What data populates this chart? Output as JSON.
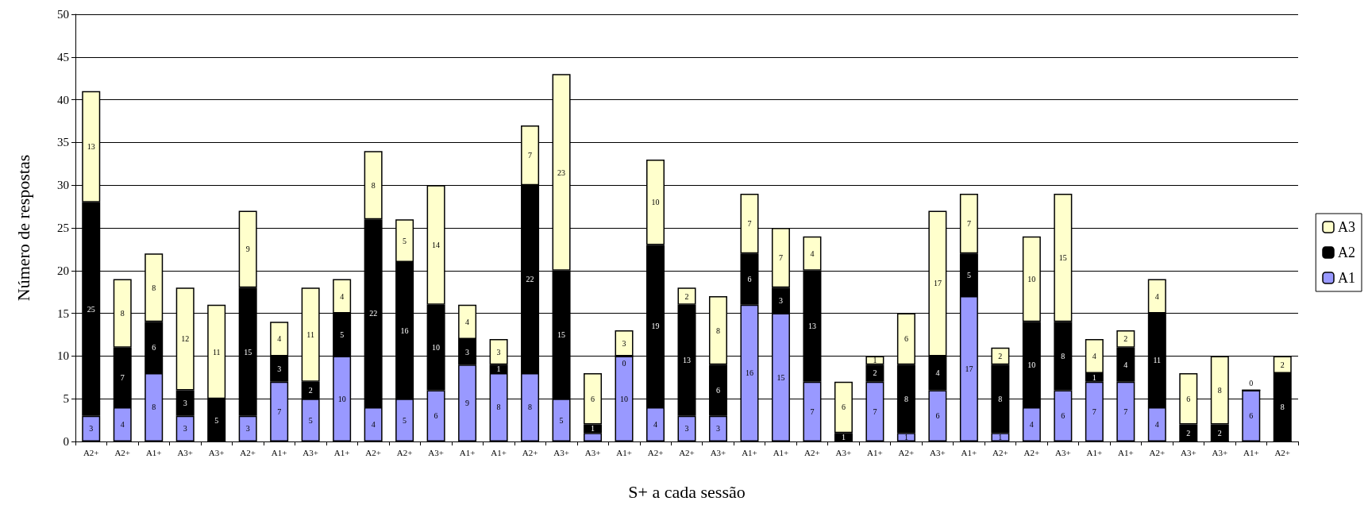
{
  "chart_data": {
    "type": "bar",
    "stacked": true,
    "grid": "y",
    "legend": "right",
    "xlabel": "S+ a cada sessão",
    "ylabel": "Número de respostas",
    "categories": [
      "A2+",
      "A2+",
      "A1+",
      "A3+",
      "A3+",
      "A2+",
      "A1+",
      "A3+",
      "A1+",
      "A2+",
      "A2+",
      "A3+",
      "A1+",
      "A1+",
      "A2+",
      "A3+",
      "A3+",
      "A1+",
      "A2+",
      "A2+",
      "A3+",
      "A1+",
      "A1+",
      "A2+",
      "A3+",
      "A1+",
      "A2+",
      "A3+",
      "A1+",
      "A2+",
      "A2+",
      "A3+",
      "A1+",
      "A1+",
      "A2+",
      "A3+",
      "A3+",
      "A1+",
      "A2+"
    ],
    "ylim": [
      0,
      50
    ],
    "yticks": [
      0,
      5,
      10,
      15,
      20,
      25,
      30,
      35,
      40,
      45,
      50
    ],
    "series": [
      {
        "name": "A1",
        "color": "#9999ff",
        "values": [
          3,
          4,
          8,
          3,
          0,
          3,
          7,
          5,
          10,
          4,
          5,
          6,
          9,
          8,
          8,
          5,
          1,
          10,
          4,
          3,
          3,
          16,
          15,
          7,
          0,
          7,
          1,
          6,
          17,
          1,
          4,
          6,
          7,
          7,
          4,
          0,
          0,
          6,
          0
        ],
        "value_labels": [
          "3",
          "4",
          "8",
          "3",
          null,
          "3",
          "7",
          "5",
          "10",
          "4",
          "5",
          "6",
          "9",
          "8",
          "8",
          "5",
          null,
          "10",
          "4",
          "3",
          "3",
          "16",
          "15",
          "7",
          null,
          "7",
          "1",
          "6",
          "17",
          "1",
          "4",
          "6",
          "7",
          "7",
          "4",
          null,
          null,
          "6",
          null
        ]
      },
      {
        "name": "A2",
        "color": "#000000",
        "values": [
          25,
          7,
          6,
          3,
          5,
          15,
          3,
          2,
          5,
          22,
          16,
          10,
          3,
          1,
          22,
          15,
          1,
          0,
          19,
          13,
          6,
          6,
          3,
          13,
          1,
          2,
          8,
          4,
          5,
          8,
          10,
          8,
          1,
          4,
          11,
          2,
          2,
          0,
          8
        ],
        "value_labels": [
          "25",
          "7",
          "6",
          "3",
          "5",
          "15",
          "3",
          "2",
          "5",
          "22",
          "16",
          "10",
          "3",
          "1",
          "22",
          "15",
          "1",
          "0",
          "19",
          "13",
          "6",
          "6",
          "3",
          "13",
          "1",
          "2",
          "8",
          "4",
          "5",
          "8",
          "10",
          "8",
          "1",
          "4",
          "11",
          "2",
          "2",
          null,
          "8"
        ]
      },
      {
        "name": "A3",
        "color": "#ffffcc",
        "values": [
          13,
          8,
          8,
          12,
          11,
          9,
          4,
          11,
          4,
          8,
          5,
          14,
          4,
          3,
          7,
          23,
          6,
          3,
          10,
          2,
          8,
          7,
          7,
          4,
          6,
          1,
          6,
          17,
          7,
          2,
          10,
          15,
          4,
          2,
          4,
          6,
          8,
          0,
          2
        ],
        "value_labels": [
          "13",
          "8",
          "8",
          "12",
          "11",
          "9",
          "4",
          "11",
          "4",
          "8",
          "5",
          "14",
          "4",
          "3",
          "7",
          "23",
          "6",
          "3",
          "10",
          "2",
          "8",
          "7",
          "7",
          "4",
          "6",
          "1",
          "6",
          "17",
          "7",
          "2",
          "10",
          "15",
          "4",
          "2",
          "4",
          "6",
          "8",
          "0",
          "2"
        ]
      }
    ]
  }
}
